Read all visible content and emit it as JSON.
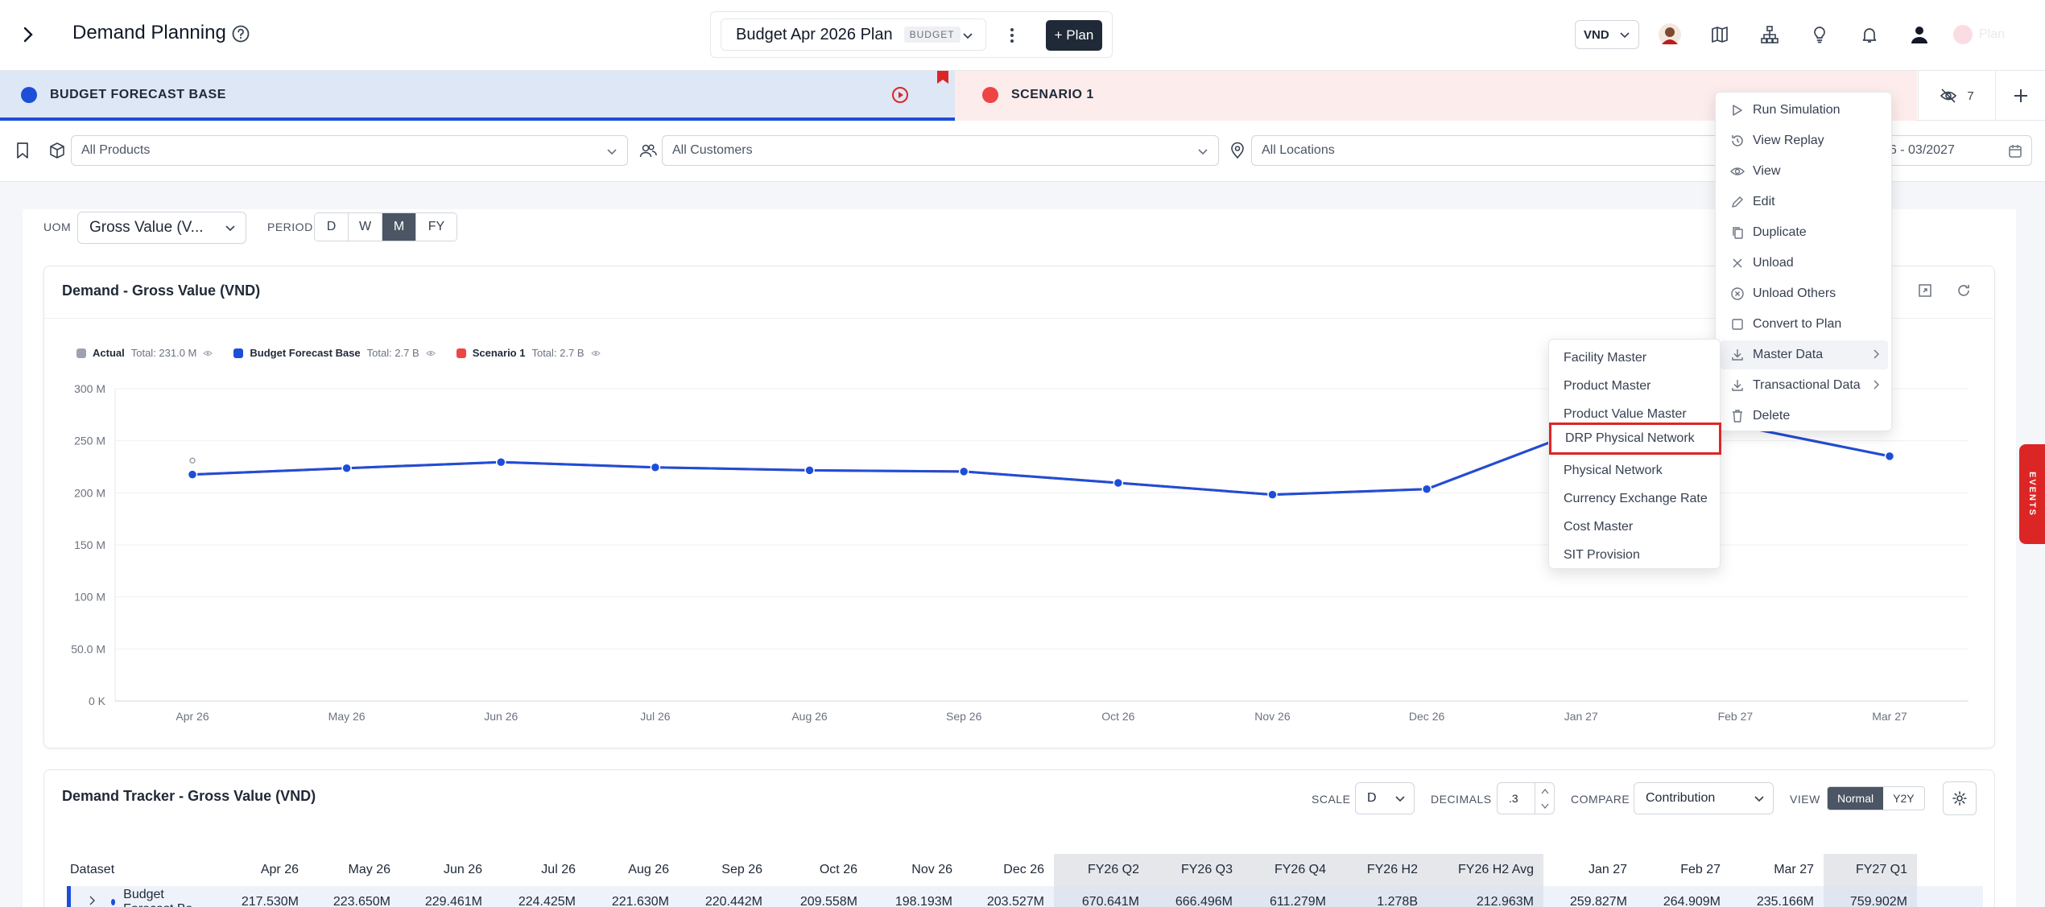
{
  "header": {
    "title": "Demand Planning",
    "plan_name": "Budget Apr 2026 Plan",
    "plan_badge": "BUDGET",
    "add_plan": "+ Plan",
    "currency": "VND",
    "faded_user": "Plan"
  },
  "scenarios": {
    "base": "BUDGET FORECAST BASE",
    "s1": "SCENARIO 1",
    "hidden_count": "7"
  },
  "filters": {
    "products": "All Products",
    "customers": "All Customers",
    "locations": "All Locations",
    "date_range": "26 - 03/2027"
  },
  "controls": {
    "uom_label": "UOM",
    "uom_value": "Gross Value (V...",
    "period_label": "PERIOD",
    "period_options": [
      "D",
      "W",
      "M",
      "FY"
    ],
    "period_active": "M"
  },
  "chart_data": {
    "type": "line",
    "title": "Demand - Gross Value (VND)",
    "categories": [
      "Apr 26",
      "May 26",
      "Jun 26",
      "Jul 26",
      "Aug 26",
      "Sep 26",
      "Oct 26",
      "Nov 26",
      "Dec 26",
      "Jan 27",
      "Feb 27",
      "Mar 27"
    ],
    "y_ticks": [
      "300 M",
      "250 M",
      "200 M",
      "150 M",
      "100 M",
      "50.0 M",
      "0 K"
    ],
    "ylim": [
      0,
      300
    ],
    "series": [
      {
        "name": "Actual",
        "total": "Total: 231.0 M",
        "color": "#9ca3af",
        "values": [
          231,
          null,
          null,
          null,
          null,
          null,
          null,
          null,
          null,
          null,
          null,
          null
        ]
      },
      {
        "name": "Budget Forecast Base",
        "total": "Total: 2.7 B",
        "color": "#1d4ed8",
        "values": [
          217.53,
          223.65,
          229.461,
          224.425,
          221.63,
          220.442,
          209.558,
          198.193,
          203.527,
          259.827,
          264.909,
          235.166
        ]
      },
      {
        "name": "Scenario 1",
        "total": "Total: 2.7 B",
        "color": "#ef4444",
        "values": [
          217.53,
          223.65,
          229.461,
          224.425,
          221.63,
          220.442,
          209.558,
          198.193,
          203.527,
          259.827,
          264.909,
          235.166
        ]
      }
    ],
    "grid": true,
    "legend": "top-left"
  },
  "tracker": {
    "title": "Demand Tracker - Gross Value (VND)",
    "scale_label": "SCALE",
    "scale_value": "D",
    "decimals_label": "DECIMALS",
    "decimals_value": ".3",
    "compare_label": "COMPARE",
    "compare_value": "Contribution",
    "view_label": "VIEW",
    "view_normal": "Normal",
    "view_y2y": "Y2Y",
    "columns": [
      "Dataset",
      "Apr 26",
      "May 26",
      "Jun 26",
      "Jul 26",
      "Aug 26",
      "Sep 26",
      "Oct 26",
      "Nov 26",
      "Dec 26",
      "FY26 Q2",
      "FY26 Q3",
      "FY26 Q4",
      "FY26 H2",
      "FY26 H2 Avg",
      "Jan 27",
      "Feb 27",
      "Mar 27",
      "FY27 Q1"
    ],
    "rows": [
      {
        "name": "Budget Forecast Ba...",
        "values": [
          "217.530M",
          "223.650M",
          "229.461M",
          "224.425M",
          "221.630M",
          "220.442M",
          "209.558M",
          "198.193M",
          "203.527M",
          "670.641M",
          "666.496M",
          "611.279M",
          "1.278B",
          "212.963M",
          "259.827M",
          "264.909M",
          "235.166M",
          "759.902M"
        ]
      }
    ]
  },
  "menu": {
    "items": [
      "Run Simulation",
      "View Replay",
      "View",
      "Edit",
      "Duplicate",
      "Unload",
      "Unload Others",
      "Convert to Plan",
      "Master Data",
      "Transactional Data",
      "Delete"
    ]
  },
  "submenu": {
    "items": [
      "Facility Master",
      "Product Master",
      "Product Value Master",
      "DRP Physical Network",
      "Physical Network",
      "Currency Exchange Rate",
      "Cost Master",
      "SIT Provision"
    ]
  },
  "events_label": "EVENTS"
}
